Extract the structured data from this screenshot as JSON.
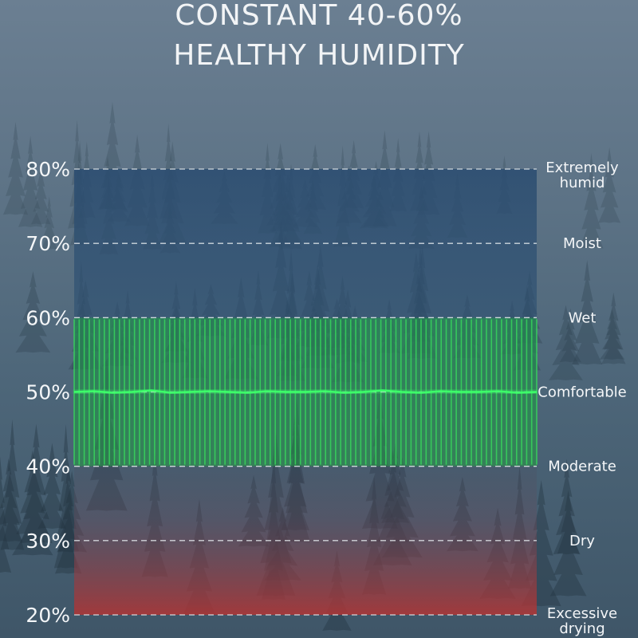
{
  "title_lines": [
    "CONSTANT 40-60%",
    "HEALTHY HUMIDITY"
  ],
  "chart_data": {
    "type": "area",
    "y_unit": "%",
    "ylim": [
      20,
      80
    ],
    "y_ticks": [
      "80%",
      "70%",
      "60%",
      "50%",
      "40%",
      "30%",
      "20%"
    ],
    "y_tick_values": [
      80,
      70,
      60,
      50,
      40,
      30,
      20
    ],
    "grid": "dashed horizontal lines at each tick",
    "zones": [
      {
        "value": 80,
        "label": "Extremely humid"
      },
      {
        "value": 70,
        "label": "Moist"
      },
      {
        "value": 60,
        "label": "Wet"
      },
      {
        "value": 50,
        "label": "Comfortable"
      },
      {
        "value": 40,
        "label": "Moderate"
      },
      {
        "value": 30,
        "label": "Dry"
      },
      {
        "value": 20,
        "label": "Excessive drying"
      }
    ],
    "healthy_band": {
      "min": 40,
      "max": 60,
      "color": "#22c44a"
    },
    "series": [
      {
        "values": [
          50.0,
          50.1,
          49.9,
          50.0,
          50.2,
          49.9,
          50.0,
          50.1,
          50.0,
          49.9,
          50.1,
          50.0,
          50.0,
          50.1,
          49.9,
          50.0,
          50.2,
          50.0,
          49.9,
          50.1,
          50.0,
          50.0,
          50.1,
          49.9,
          50.0
        ]
      }
    ],
    "colors": {
      "top_zone": "#2b4f72",
      "bottom_zone": "#b23a3a",
      "line": "#3dff6a"
    }
  }
}
